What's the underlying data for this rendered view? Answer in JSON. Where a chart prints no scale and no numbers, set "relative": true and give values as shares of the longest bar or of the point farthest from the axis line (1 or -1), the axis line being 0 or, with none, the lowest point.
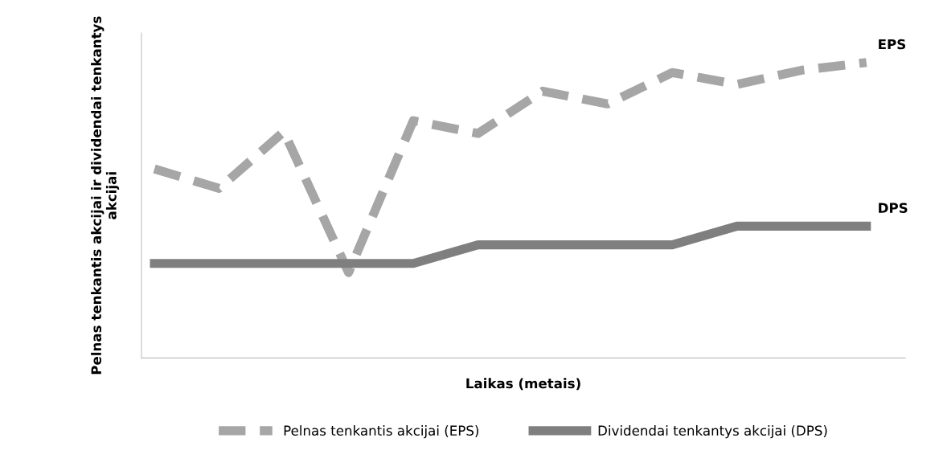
{
  "chart_data": {
    "type": "line",
    "relative": true,
    "xlabel": "Laikas (metais)",
    "ylabel": "Pelnas tenkantis akcijai ir dividendai tenkantys akcijai",
    "categories": [
      null,
      null,
      null,
      null,
      null,
      null,
      null,
      null,
      null,
      null,
      null,
      null
    ],
    "series": [
      {
        "name": "Pelnas tenkantis akcijai (EPS)",
        "color": "#a6a6a6",
        "line_style": "dashed",
        "values": [
          0.64,
          0.574,
          0.766,
          0.289,
          0.803,
          0.76,
          0.903,
          0.86,
          0.966,
          0.926,
          0.974,
          1.0
        ]
      },
      {
        "name": "Dividendai tenkantys akcijai (DPS)",
        "color": "#7f7f7f",
        "line_style": "solid",
        "values": [
          0.32,
          0.32,
          0.32,
          0.32,
          0.32,
          0.383,
          0.383,
          0.383,
          0.383,
          0.446,
          0.446,
          0.446
        ]
      }
    ],
    "annotations": [
      "EPS",
      "DPS"
    ],
    "legend": "bottom",
    "marker": "none"
  }
}
